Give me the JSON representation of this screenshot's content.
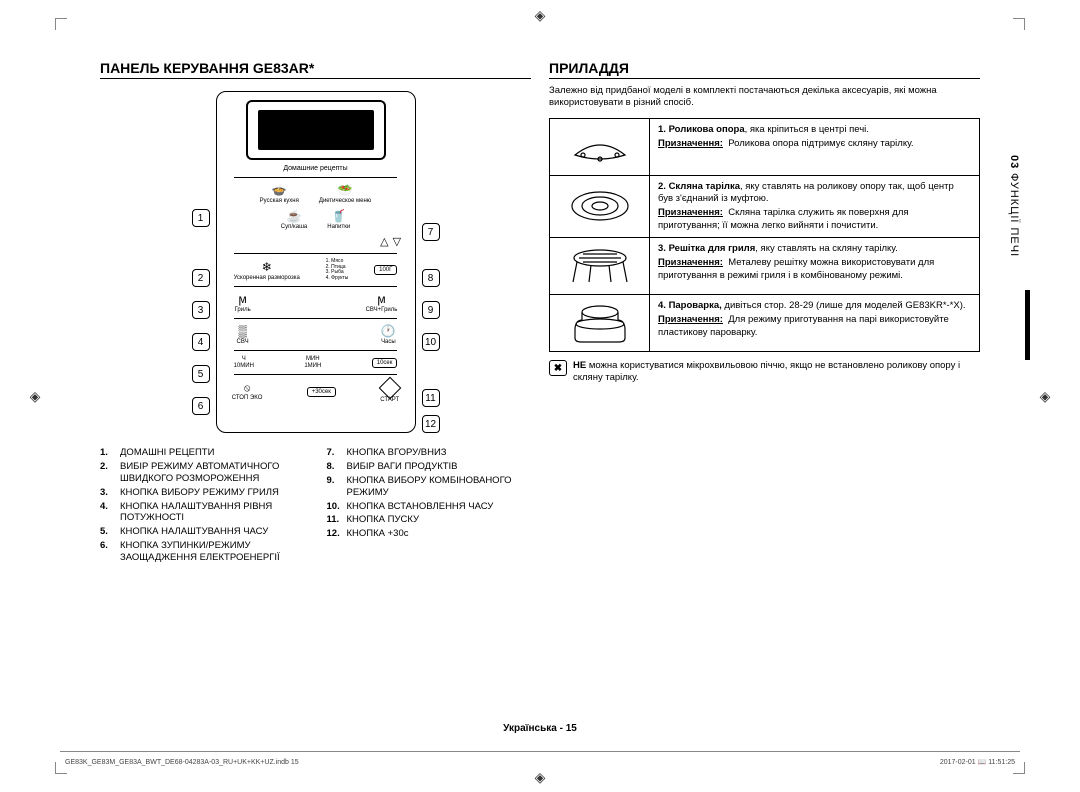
{
  "left": {
    "title": "ПАНЕЛЬ КЕРУВАННЯ GE83AR*",
    "callouts_left": [
      "1",
      "2",
      "3",
      "4",
      "5",
      "6"
    ],
    "callouts_right": [
      "7",
      "8",
      "9",
      "10",
      "11",
      "12"
    ],
    "panel": {
      "recipes_label": "Домашние рецепты",
      "row1": {
        "a": "Русская кухня",
        "b": "Диетическое меню"
      },
      "row2": {
        "a": "Суп/каша",
        "b": "Напитки"
      },
      "defrost": {
        "label": "Ускоренная разморозка",
        "list": "1. Мясо\n2. Птица\n3. Рыба\n4. Фрукты",
        "weight": "100Г"
      },
      "grill": {
        "a": "Гриль",
        "b": "СВЧ+Гриль"
      },
      "power_time": {
        "a": "СВЧ",
        "b": "Часы"
      },
      "time_row": {
        "a": "Ч",
        "b": "МИН",
        "c": "10сек",
        "a2": "10МИН",
        "b2": "1МИН"
      },
      "bottom": {
        "stop": "СТОП ЭКО",
        "plus30": "+30сек",
        "start": "СТАРТ"
      }
    },
    "legend": [
      [
        {
          "num": "1.",
          "text": "ДОМАШНІ РЕЦЕПТИ"
        },
        {
          "num": "2.",
          "text": "ВИБІР РЕЖИМУ АВТОМАТИЧНОГО ШВИДКОГО РОЗМОРОЖЕННЯ"
        },
        {
          "num": "3.",
          "text": "КНОПКА ВИБОРУ РЕЖИМУ ГРИЛЯ"
        },
        {
          "num": "4.",
          "text": "КНОПКА НАЛАШТУВАННЯ РІВНЯ ПОТУЖНОСТІ"
        },
        {
          "num": "5.",
          "text": "КНОПКА НАЛАШТУВАННЯ ЧАСУ"
        },
        {
          "num": "6.",
          "text": "КНОПКА ЗУПИНКИ/РЕЖИМУ ЗАОЩАДЖЕННЯ ЕЛЕКТРОЕНЕРГІЇ"
        }
      ],
      [
        {
          "num": "7.",
          "text": "КНОПКА ВГОРУ/ВНИЗ"
        },
        {
          "num": "8.",
          "text": "ВИБІР ВАГИ ПРОДУКТІВ"
        },
        {
          "num": "9.",
          "text": "КНОПКА ВИБОРУ КОМБІНОВАНОГО РЕЖИМУ"
        },
        {
          "num": "10.",
          "text": "КНОПКА ВСТАНОВЛЕННЯ ЧАСУ"
        },
        {
          "num": "11.",
          "text": "КНОПКА ПУСКУ"
        },
        {
          "num": "12.",
          "text": "КНОПКА +30с"
        }
      ]
    ]
  },
  "right": {
    "title": "ПРИЛАДДЯ",
    "intro": "Залежно від придбаної моделі в комплекті постачаються декілька аксесуарів, які можна використовувати в різний спосіб.",
    "rows": [
      {
        "num": "1.",
        "name": "Роликова опора",
        "name_suffix": ", яка кріпиться в центрі печі.",
        "purpose_label": "Призначення:",
        "purpose": "Роликова опора підтримує скляну тарілку."
      },
      {
        "num": "2.",
        "name": "Скляна тарілка",
        "name_suffix": ", яку ставлять на роликову опору так, щоб центр був з'єднаний із муфтою.",
        "purpose_label": "Призначення:",
        "purpose": "Скляна тарілка служить як поверхня для приготування; її можна легко вийняти і почистити."
      },
      {
        "num": "3.",
        "name": "Решітка для гриля",
        "name_suffix": ", яку ставлять на скляну тарілку.",
        "purpose_label": "Призначення:",
        "purpose": "Металеву решітку можна використовувати для приготування в режимі гриля і в комбінованому режимі."
      },
      {
        "num": "4.",
        "name": "Пароварка,",
        "name_suffix": " дивіться стор. 28-29 (лише для моделей GE83KR*-*X).",
        "purpose_label": "Призначення:",
        "purpose": "Для режиму приготування на парі використовуйте пластикову пароварку."
      }
    ],
    "warning_bold": "НЕ",
    "warning_text": " можна користуватися мікрохвильовою піччю, якщо не встановлено роликову опору і скляну тарілку.",
    "side_tab_num": "03",
    "side_tab_text": "ФУНКЦІЇ ПЕЧІ"
  },
  "footer": {
    "center": "Українська - 15",
    "left": "GE83K_GE83M_GE83A_BWT_DE68-04283A-03_RU+UK+KK+UZ.indb   15",
    "right": "2017-02-01   📖 11:51:25"
  }
}
